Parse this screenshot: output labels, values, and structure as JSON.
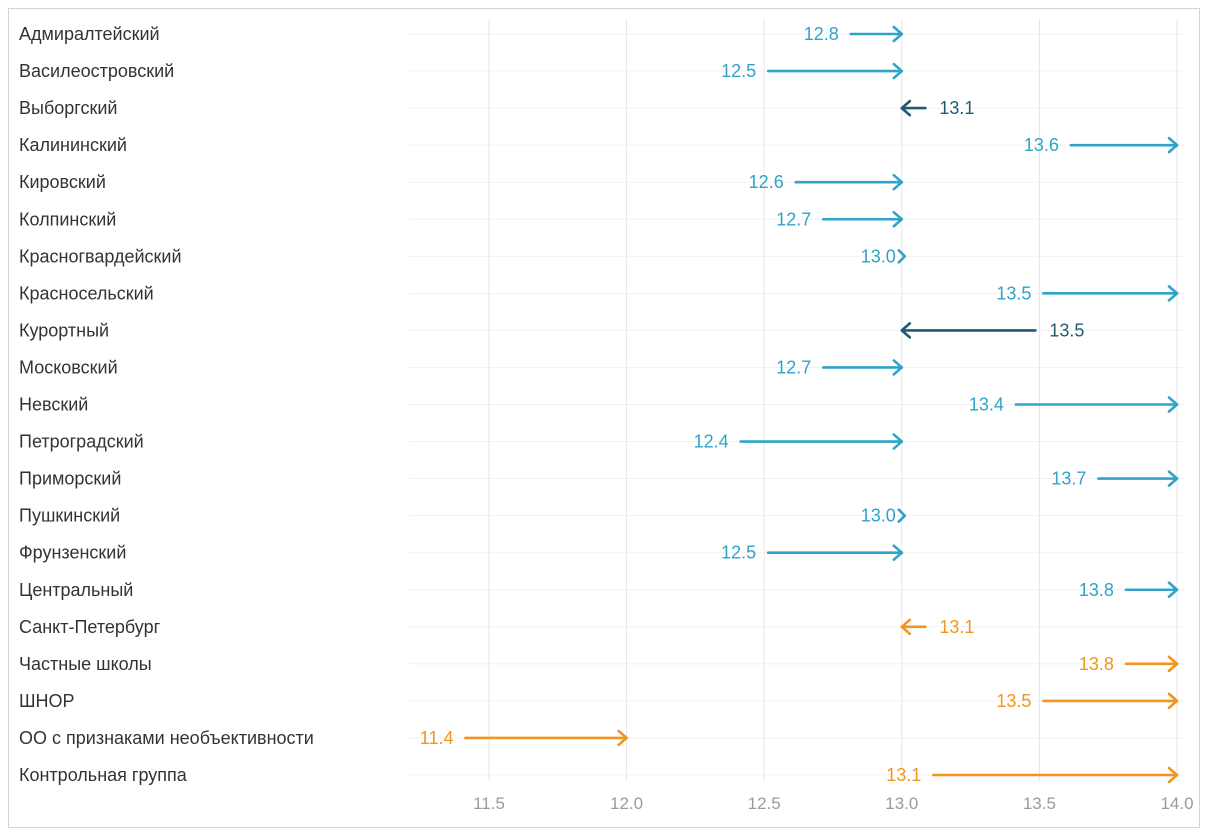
{
  "chart_data": {
    "type": "arrow",
    "title": "",
    "xlabel": "",
    "ylabel": "",
    "xlim": [
      11.5,
      14.0
    ],
    "x_ticks": [
      "11.5",
      "12.0",
      "12.5",
      "13.0",
      "13.5",
      "14.0"
    ],
    "x_tick_values": [
      11.5,
      12.0,
      12.5,
      13.0,
      13.5,
      14.0
    ],
    "grid": true,
    "baseline": 13.0,
    "rows": [
      {
        "label": "Адмиралтейский",
        "value": 12.8,
        "value_text": "12.8",
        "from": 12.8,
        "to": 13.0,
        "color": "#2fa4c8"
      },
      {
        "label": "Василеостровский",
        "value": 12.5,
        "value_text": "12.5",
        "from": 12.5,
        "to": 13.0,
        "color": "#2fa4c8"
      },
      {
        "label": "Выборгский",
        "value": 13.1,
        "value_text": "13.1",
        "from": 13.1,
        "to": 13.0,
        "color": "#1f5c73"
      },
      {
        "label": "Калининский",
        "value": 13.6,
        "value_text": "13.6",
        "from": 13.6,
        "to": 14.0,
        "color": "#2fa4c8"
      },
      {
        "label": "Кировский",
        "value": 12.6,
        "value_text": "12.6",
        "from": 12.6,
        "to": 13.0,
        "color": "#2fa4c8"
      },
      {
        "label": "Колпинский",
        "value": 12.7,
        "value_text": "12.7",
        "from": 12.7,
        "to": 13.0,
        "color": "#2fa4c8"
      },
      {
        "label": "Красногвардейский",
        "value": 13.0,
        "value_text": "13.0",
        "from": 13.0,
        "to": 13.0,
        "color": "#2fa4c8"
      },
      {
        "label": "Красносельский",
        "value": 13.5,
        "value_text": "13.5",
        "from": 13.5,
        "to": 14.0,
        "color": "#2fa4c8"
      },
      {
        "label": "Курортный",
        "value": 13.5,
        "value_text": "13.5",
        "from": 13.5,
        "to": 13.0,
        "color": "#1f5c73"
      },
      {
        "label": "Московский",
        "value": 12.7,
        "value_text": "12.7",
        "from": 12.7,
        "to": 13.0,
        "color": "#2fa4c8"
      },
      {
        "label": "Невский",
        "value": 13.4,
        "value_text": "13.4",
        "from": 13.4,
        "to": 14.0,
        "color": "#2fa4c8"
      },
      {
        "label": "Петроградский",
        "value": 12.4,
        "value_text": "12.4",
        "from": 12.4,
        "to": 13.0,
        "color": "#2fa4c8"
      },
      {
        "label": "Приморский",
        "value": 13.7,
        "value_text": "13.7",
        "from": 13.7,
        "to": 14.0,
        "color": "#2fa4c8"
      },
      {
        "label": "Пушкинский",
        "value": 13.0,
        "value_text": "13.0",
        "from": 13.0,
        "to": 13.0,
        "color": "#2fa4c8"
      },
      {
        "label": "Фрунзенский",
        "value": 12.5,
        "value_text": "12.5",
        "from": 12.5,
        "to": 13.0,
        "color": "#2fa4c8"
      },
      {
        "label": "Центральный",
        "value": 13.8,
        "value_text": "13.8",
        "from": 13.8,
        "to": 14.0,
        "color": "#2fa4c8"
      },
      {
        "label": "Санкт-Петербург",
        "value": 13.1,
        "value_text": "13.1",
        "from": 13.1,
        "to": 13.0,
        "color": "#f0961e"
      },
      {
        "label": "Частные школы",
        "value": 13.8,
        "value_text": "13.8",
        "from": 13.8,
        "to": 14.0,
        "color": "#f0961e"
      },
      {
        "label": "ШНОР",
        "value": 13.5,
        "value_text": "13.5",
        "from": 13.5,
        "to": 14.0,
        "color": "#f0961e"
      },
      {
        "label": "ОО с признаками необъективности",
        "value": 11.4,
        "value_text": "11.4",
        "from": 11.4,
        "to": 12.0,
        "color": "#f0961e"
      },
      {
        "label": "Контрольная группа",
        "value": 13.1,
        "value_text": "13.1",
        "from": 13.1,
        "to": 14.0,
        "color": "#f0961e"
      }
    ],
    "colors": {
      "district": "#2fa4c8",
      "district_down": "#1f5c73",
      "group": "#f0961e",
      "grid": "#e6e6e6",
      "tick": "#9a9a9a",
      "label": "#333333"
    }
  }
}
